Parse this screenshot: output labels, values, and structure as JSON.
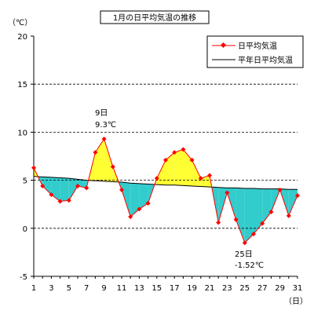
{
  "chart_data": {
    "type": "line",
    "title": "1月の日平均気温の推移",
    "ylabel": "（℃）",
    "xlabel": "（日）",
    "ylim": [
      -5,
      20
    ],
    "xlim": [
      1,
      31
    ],
    "yticks": [
      "20",
      "15",
      "10",
      "5",
      "0",
      "-5"
    ],
    "xticks": [
      "1",
      "3",
      "5",
      "7",
      "9",
      "11",
      "13",
      "15",
      "17",
      "19",
      "21",
      "23",
      "25",
      "27",
      "29",
      "31"
    ],
    "grid": "horizontal dashed",
    "legend_position": "top-right",
    "fill_above_color": "#ffff33",
    "fill_below_color": "#33cccc",
    "x": [
      1,
      2,
      3,
      4,
      5,
      6,
      7,
      8,
      9,
      10,
      11,
      12,
      13,
      14,
      15,
      16,
      17,
      18,
      19,
      20,
      21,
      22,
      23,
      24,
      25,
      26,
      27,
      28,
      29,
      30,
      31
    ],
    "series": [
      {
        "name": "日平均気温",
        "color": "#ff0000",
        "marker": "diamond",
        "values": [
          6.3,
          4.4,
          3.5,
          2.8,
          2.9,
          4.4,
          4.2,
          7.9,
          9.3,
          6.4,
          4.0,
          1.2,
          2.0,
          2.6,
          5.2,
          7.1,
          7.9,
          8.2,
          7.1,
          5.2,
          5.5,
          0.6,
          3.7,
          0.9,
          -1.52,
          -0.6,
          0.5,
          1.7,
          4.0,
          1.3,
          3.4
        ]
      },
      {
        "name": "平年日平均気温",
        "color": "#000000",
        "values": [
          5.4,
          5.35,
          5.3,
          5.25,
          5.2,
          5.1,
          5.0,
          4.95,
          4.9,
          4.85,
          4.8,
          4.7,
          4.65,
          4.6,
          4.55,
          4.5,
          4.5,
          4.45,
          4.4,
          4.35,
          4.3,
          4.25,
          4.2,
          4.2,
          4.15,
          4.15,
          4.1,
          4.1,
          4.1,
          4.05,
          4.05
        ]
      }
    ],
    "annotations": [
      {
        "label": "max",
        "x": 9,
        "day": "9日",
        "value": "9.3℃"
      },
      {
        "label": "min",
        "x": 25,
        "day": "25日",
        "value": "-1.52℃"
      }
    ]
  }
}
